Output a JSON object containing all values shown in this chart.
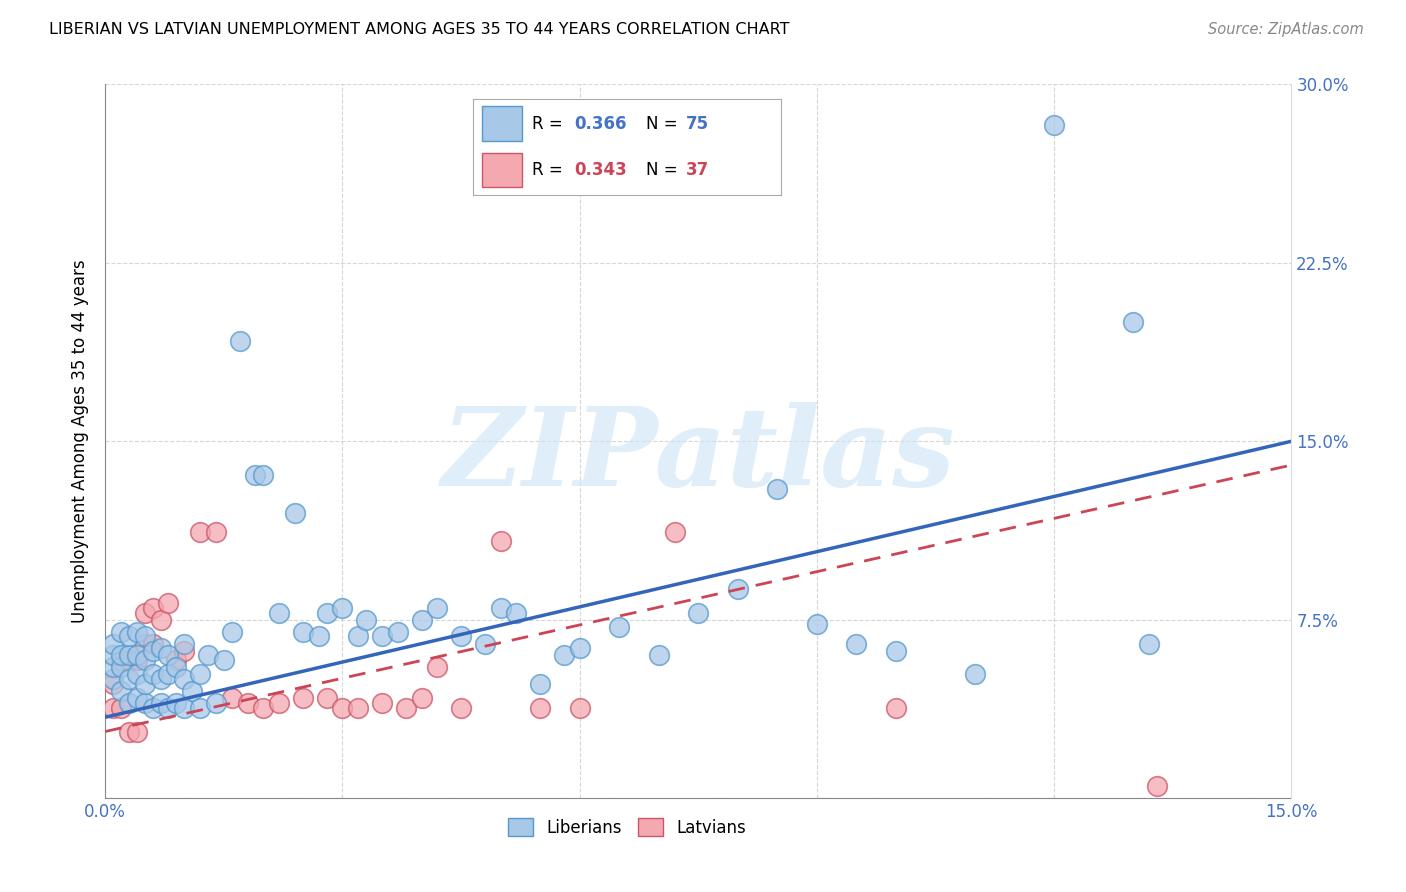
{
  "title": "LIBERIAN VS LATVIAN UNEMPLOYMENT AMONG AGES 35 TO 44 YEARS CORRELATION CHART",
  "source": "Source: ZipAtlas.com",
  "ylabel": "Unemployment Among Ages 35 to 44 years",
  "xlim": [
    0.0,
    0.15
  ],
  "ylim": [
    0.0,
    0.3
  ],
  "liberian_R": "0.366",
  "liberian_N": "75",
  "latvian_R": "0.343",
  "latvian_N": "37",
  "liberian_color": "#a8c8e8",
  "latvian_color": "#f4a8b0",
  "liberian_edge_color": "#5599cc",
  "latvian_edge_color": "#cc5566",
  "liberian_line_color": "#3366bb",
  "latvian_line_color": "#cc4455",
  "watermark": "ZIPatlas",
  "lib_line_x0": 0.0,
  "lib_line_y0": 0.034,
  "lib_line_x1": 0.15,
  "lib_line_y1": 0.15,
  "lat_line_x0": 0.0,
  "lat_line_y0": 0.028,
  "lat_line_x1": 0.15,
  "lat_line_y1": 0.14,
  "liberian_x": [
    0.001,
    0.001,
    0.001,
    0.001,
    0.002,
    0.002,
    0.002,
    0.002,
    0.003,
    0.003,
    0.003,
    0.003,
    0.004,
    0.004,
    0.004,
    0.004,
    0.005,
    0.005,
    0.005,
    0.005,
    0.006,
    0.006,
    0.006,
    0.007,
    0.007,
    0.007,
    0.008,
    0.008,
    0.008,
    0.009,
    0.009,
    0.01,
    0.01,
    0.01,
    0.011,
    0.012,
    0.012,
    0.013,
    0.014,
    0.015,
    0.016,
    0.017,
    0.019,
    0.02,
    0.022,
    0.024,
    0.025,
    0.027,
    0.028,
    0.03,
    0.032,
    0.033,
    0.035,
    0.037,
    0.04,
    0.042,
    0.045,
    0.048,
    0.05,
    0.052,
    0.055,
    0.058,
    0.06,
    0.065,
    0.07,
    0.075,
    0.08,
    0.085,
    0.09,
    0.095,
    0.1,
    0.11,
    0.12,
    0.13,
    0.132
  ],
  "liberian_y": [
    0.05,
    0.055,
    0.06,
    0.065,
    0.045,
    0.055,
    0.06,
    0.07,
    0.04,
    0.05,
    0.06,
    0.068,
    0.042,
    0.052,
    0.06,
    0.07,
    0.04,
    0.048,
    0.058,
    0.068,
    0.038,
    0.052,
    0.062,
    0.04,
    0.05,
    0.063,
    0.038,
    0.052,
    0.06,
    0.04,
    0.055,
    0.038,
    0.05,
    0.065,
    0.045,
    0.038,
    0.052,
    0.06,
    0.04,
    0.058,
    0.07,
    0.192,
    0.136,
    0.136,
    0.078,
    0.12,
    0.07,
    0.068,
    0.078,
    0.08,
    0.068,
    0.075,
    0.068,
    0.07,
    0.075,
    0.08,
    0.068,
    0.065,
    0.08,
    0.078,
    0.048,
    0.06,
    0.063,
    0.072,
    0.06,
    0.078,
    0.088,
    0.13,
    0.073,
    0.065,
    0.062,
    0.052,
    0.283,
    0.2,
    0.065
  ],
  "latvian_x": [
    0.001,
    0.001,
    0.002,
    0.002,
    0.003,
    0.003,
    0.004,
    0.004,
    0.005,
    0.005,
    0.006,
    0.006,
    0.007,
    0.008,
    0.009,
    0.01,
    0.012,
    0.014,
    0.016,
    0.018,
    0.02,
    0.022,
    0.025,
    0.028,
    0.03,
    0.032,
    0.035,
    0.038,
    0.04,
    0.042,
    0.045,
    0.05,
    0.055,
    0.06,
    0.072,
    0.1,
    0.133
  ],
  "latvian_y": [
    0.038,
    0.048,
    0.038,
    0.058,
    0.028,
    0.058,
    0.028,
    0.058,
    0.065,
    0.078,
    0.065,
    0.08,
    0.075,
    0.082,
    0.058,
    0.062,
    0.112,
    0.112,
    0.042,
    0.04,
    0.038,
    0.04,
    0.042,
    0.042,
    0.038,
    0.038,
    0.04,
    0.038,
    0.042,
    0.055,
    0.038,
    0.108,
    0.038,
    0.038,
    0.112,
    0.038,
    0.005
  ]
}
